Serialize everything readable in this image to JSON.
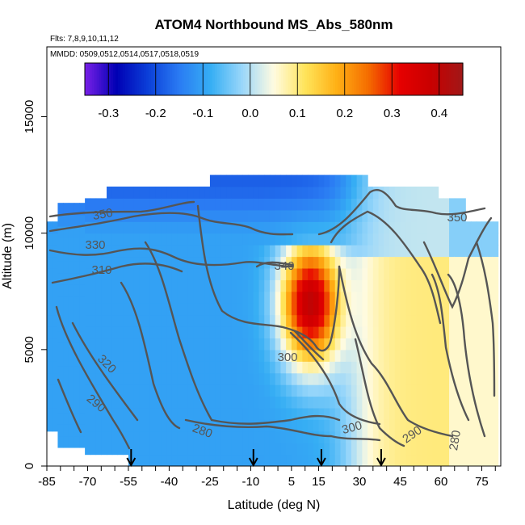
{
  "chart_data": {
    "type": "heatmap",
    "title": "ATOM4 Northbound MS_Abs_580nm",
    "subtitle_flights": "Flts: 7,8,9,10,11,12",
    "subtitle_dates": "MMDD: 0509,0512,0514,0517,0518,0519",
    "xlabel": "Latitude (deg N)",
    "ylabel": "Altitude (m)",
    "xlim": [
      -85,
      82
    ],
    "ylim": [
      0,
      18000
    ],
    "x_tick_labels": [
      "-85",
      "-70",
      "-55",
      "-40",
      "-25",
      "-10",
      "5",
      "15",
      "30",
      "45",
      "60",
      "75"
    ],
    "x_tick_values": [
      -85,
      -70,
      -55,
      -40,
      -25,
      -10,
      5,
      15,
      30,
      45,
      60,
      75
    ],
    "y_tick_labels": [
      "0",
      "5000",
      "10000",
      "15000"
    ],
    "y_tick_values": [
      0,
      5000,
      10000,
      15000
    ],
    "colorbar": {
      "range": [
        -0.35,
        0.45
      ],
      "tick_labels": [
        "-0.3",
        "-0.2",
        "-0.1",
        "0.0",
        "0.1",
        "0.2",
        "0.3",
        "0.4"
      ],
      "tick_values": [
        -0.3,
        -0.2,
        -0.1,
        0.0,
        0.1,
        0.2,
        0.3,
        0.4
      ],
      "colors": [
        "#7a20e8",
        "#0000b4",
        "#0b3fd8",
        "#2a7bf3",
        "#36aef4",
        "#9ad7fa",
        "#fffbe0",
        "#ffe45a",
        "#ffb015",
        "#f56c00",
        "#e60000",
        "#c80000",
        "#a01818"
      ]
    },
    "field_summary": {
      "data_extent_lat": [
        -85,
        80
      ],
      "data_extent_alt_m": [
        0,
        12500
      ],
      "southern_hemisphere": -0.1,
      "tropical_max_lat": 12,
      "tropical_max_alt_m": 7000,
      "tropical_max_value": 0.4,
      "northern_midlatitude": 0.1
    },
    "contour_labels": [
      "350",
      "330",
      "310",
      "340",
      "320",
      "290",
      "280",
      "300",
      "300",
      "290",
      "280",
      "350"
    ],
    "flight_arrows_lat": [
      -54,
      -9,
      16,
      38
    ]
  }
}
